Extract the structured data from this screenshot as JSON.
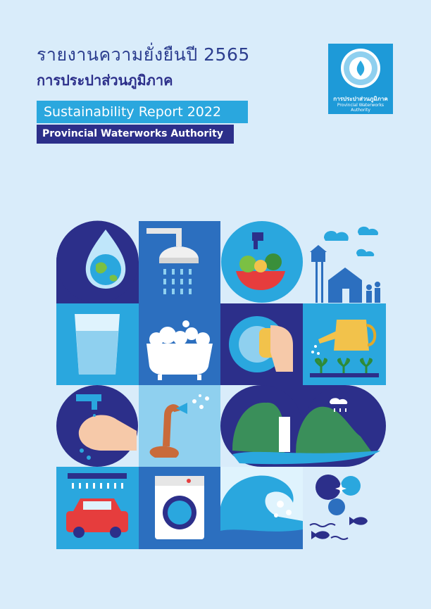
{
  "cover": {
    "title_th": "รายงานความยั่งยืนปี 2565",
    "org_th": "การประปาส่วนภูมิภาค",
    "title_en": "Sustainability Report 2022",
    "org_en": "Provincial Waterworks Authority"
  },
  "logo": {
    "name_th": "การประปาส่วนภูมิภาค",
    "name_en": "Provincial Waterworks Authority"
  },
  "colors": {
    "background": "#d9ecfa",
    "navy": "#2c2f8a",
    "accent_blue": "#2aa7de"
  },
  "illustrations": [
    "earth-water-drop-icon",
    "shower-icon",
    "washing-vegetables-icon",
    "water-tower-houses-icon",
    "water-glass-icon",
    "bathtub-icon",
    "dish-washing-icon",
    "watering-can-plants-icon",
    "hand-washing-icon",
    "garden-hose-icon",
    "waterfall-landscape-icon",
    "car-wash-icon",
    "washing-machine-icon",
    "ocean-wave-icon",
    "bubbles-fish-icon"
  ]
}
